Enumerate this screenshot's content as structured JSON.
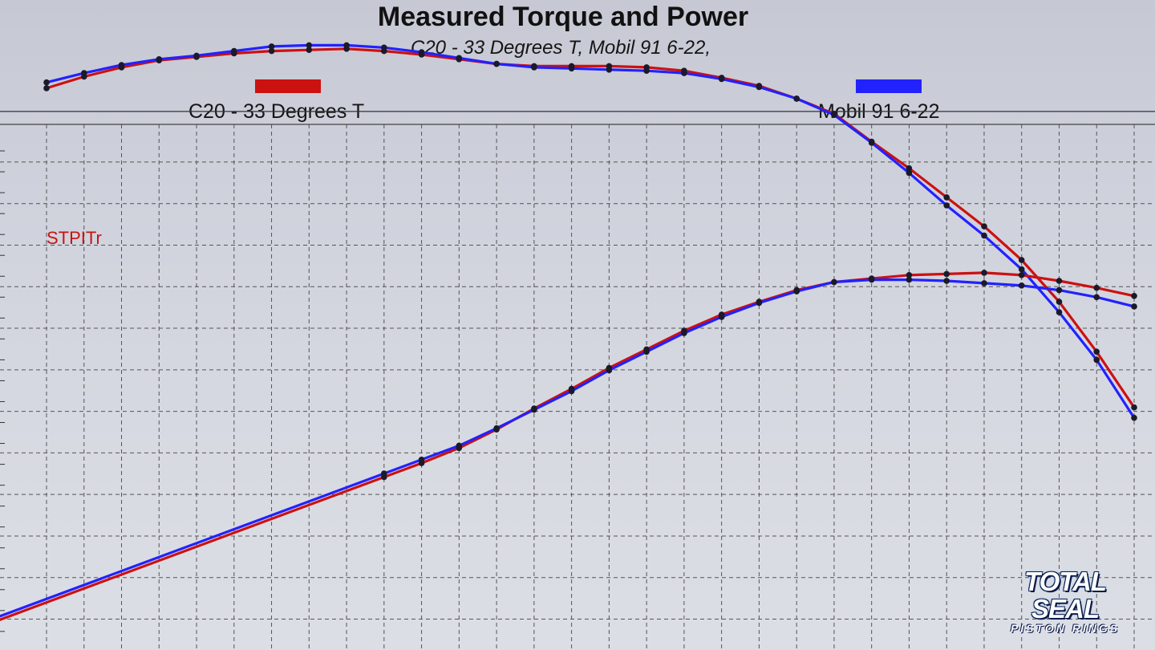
{
  "chart_data": {
    "type": "line",
    "title": "Measured Torque and Power",
    "subtitle": "C20 - 33 Degrees T, Mobil 91 6-22,",
    "legend": [
      {
        "label": "C20 - 33 Degrees T",
        "color": "#cc1111"
      },
      {
        "label": "Mobil 91 6-22",
        "color": "#2222ff"
      }
    ],
    "series_tag": "STPITr",
    "grid": true,
    "ylim": [
      0,
      28
    ],
    "x": [
      1,
      2,
      3,
      4,
      5,
      6,
      7,
      8,
      9,
      10,
      11,
      12,
      13,
      14,
      15,
      16,
      17,
      18,
      19,
      20,
      21,
      22,
      23,
      24,
      25,
      26,
      27,
      28,
      29,
      30
    ],
    "series": [
      {
        "name": "C20 - 33 Degrees T",
        "color": "#cc1111",
        "group": "torque",
        "values": [
          24.2,
          24.7,
          25.1,
          25.4,
          25.55,
          25.7,
          25.8,
          25.85,
          25.9,
          25.8,
          25.65,
          25.45,
          25.25,
          25.15,
          25.15,
          25.15,
          25.1,
          24.95,
          24.65,
          24.3,
          23.75,
          23.1,
          21.9,
          20.75,
          19.5,
          18.25,
          16.8,
          15.0,
          12.85,
          10.45
        ]
      },
      {
        "name": "Mobil 91 6-22",
        "color": "#2222ff",
        "group": "torque",
        "values": [
          24.45,
          24.85,
          25.2,
          25.45,
          25.6,
          25.8,
          26.0,
          26.05,
          26.05,
          25.95,
          25.75,
          25.5,
          25.25,
          25.1,
          25.05,
          25.0,
          24.95,
          24.85,
          24.6,
          24.25,
          23.75,
          23.05,
          21.85,
          20.55,
          19.15,
          17.85,
          16.4,
          14.55,
          12.5,
          10.0
        ]
      },
      {
        "name": "C20 - 33 Degrees T",
        "color": "#cc1111",
        "group": "power",
        "values": [
          null,
          null,
          null,
          null,
          null,
          null,
          null,
          null,
          null,
          7.45,
          8.05,
          8.7,
          9.5,
          10.4,
          11.25,
          12.15,
          12.95,
          13.75,
          14.45,
          15.0,
          15.5,
          15.85,
          16.0,
          16.15,
          16.2,
          16.25,
          16.15,
          15.9,
          15.6,
          15.25
        ]
      },
      {
        "name": "Mobil 91 6-22",
        "color": "#2222ff",
        "group": "power",
        "values": [
          null,
          null,
          null,
          null,
          null,
          null,
          null,
          null,
          null,
          7.6,
          8.2,
          8.8,
          9.55,
          10.35,
          11.15,
          12.05,
          12.85,
          13.65,
          14.35,
          14.95,
          15.45,
          15.85,
          15.95,
          15.95,
          15.9,
          15.8,
          15.7,
          15.5,
          15.2,
          14.8
        ]
      }
    ]
  },
  "logo": {
    "main": "TOTAL SEAL",
    "sub": "PISTON RINGS"
  }
}
